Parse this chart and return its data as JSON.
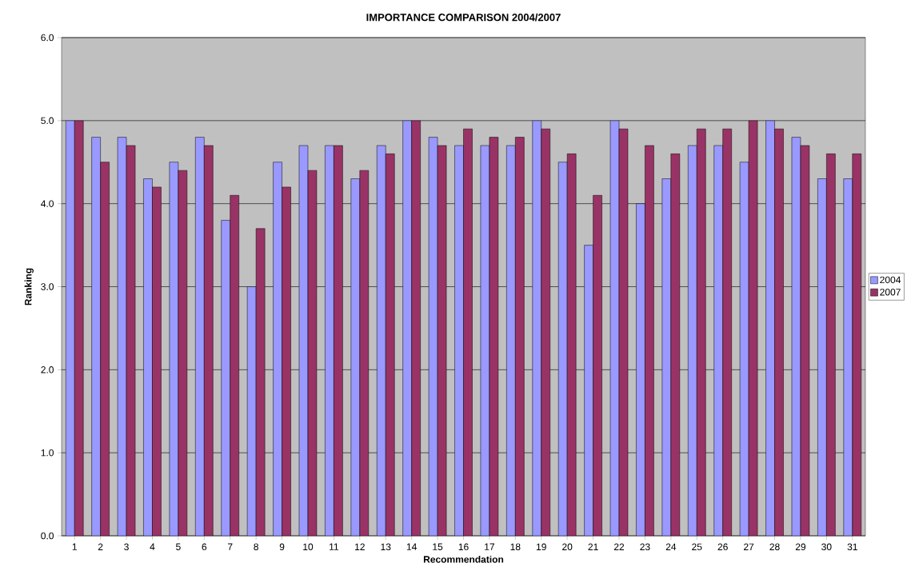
{
  "chart_data": {
    "type": "bar",
    "title": "IMPORTANCE COMPARISON 2004/2007",
    "xlabel": "Recommendation",
    "ylabel": "Ranking",
    "categories": [
      "1",
      "2",
      "3",
      "4",
      "5",
      "6",
      "7",
      "8",
      "9",
      "10",
      "11",
      "12",
      "13",
      "14",
      "15",
      "16",
      "17",
      "18",
      "19",
      "20",
      "21",
      "22",
      "23",
      "24",
      "25",
      "26",
      "27",
      "28",
      "29",
      "30",
      "31"
    ],
    "series": [
      {
        "name": "2004",
        "color": "#9999ff",
        "values": [
          5.0,
          4.8,
          4.8,
          4.3,
          4.5,
          4.8,
          3.8,
          3.0,
          4.5,
          4.7,
          4.7,
          4.3,
          4.7,
          5.0,
          4.8,
          4.7,
          4.7,
          4.7,
          5.0,
          4.5,
          3.5,
          5.0,
          4.0,
          4.3,
          4.7,
          4.7,
          4.5,
          5.0,
          4.8,
          4.3,
          4.3
        ]
      },
      {
        "name": "2007",
        "color": "#993366",
        "values": [
          5.0,
          4.5,
          4.7,
          4.2,
          4.4,
          4.7,
          4.1,
          3.7,
          4.2,
          4.4,
          4.7,
          4.4,
          4.6,
          5.0,
          4.7,
          4.9,
          4.8,
          4.8,
          4.9,
          4.6,
          4.1,
          4.9,
          4.7,
          4.6,
          4.9,
          4.9,
          5.0,
          4.9,
          4.7,
          4.6,
          4.6
        ]
      }
    ],
    "ylim": [
      0,
      6
    ],
    "yticks": [
      {
        "value": 0,
        "label": "0.0"
      },
      {
        "value": 1,
        "label": "1.0"
      },
      {
        "value": 2,
        "label": "2.0"
      },
      {
        "value": 3,
        "label": "3.0"
      },
      {
        "value": 4,
        "label": "4.0"
      },
      {
        "value": 5,
        "label": "5.0"
      },
      {
        "value": 6,
        "label": "6.0"
      }
    ],
    "grid": "y",
    "legend": "right"
  }
}
